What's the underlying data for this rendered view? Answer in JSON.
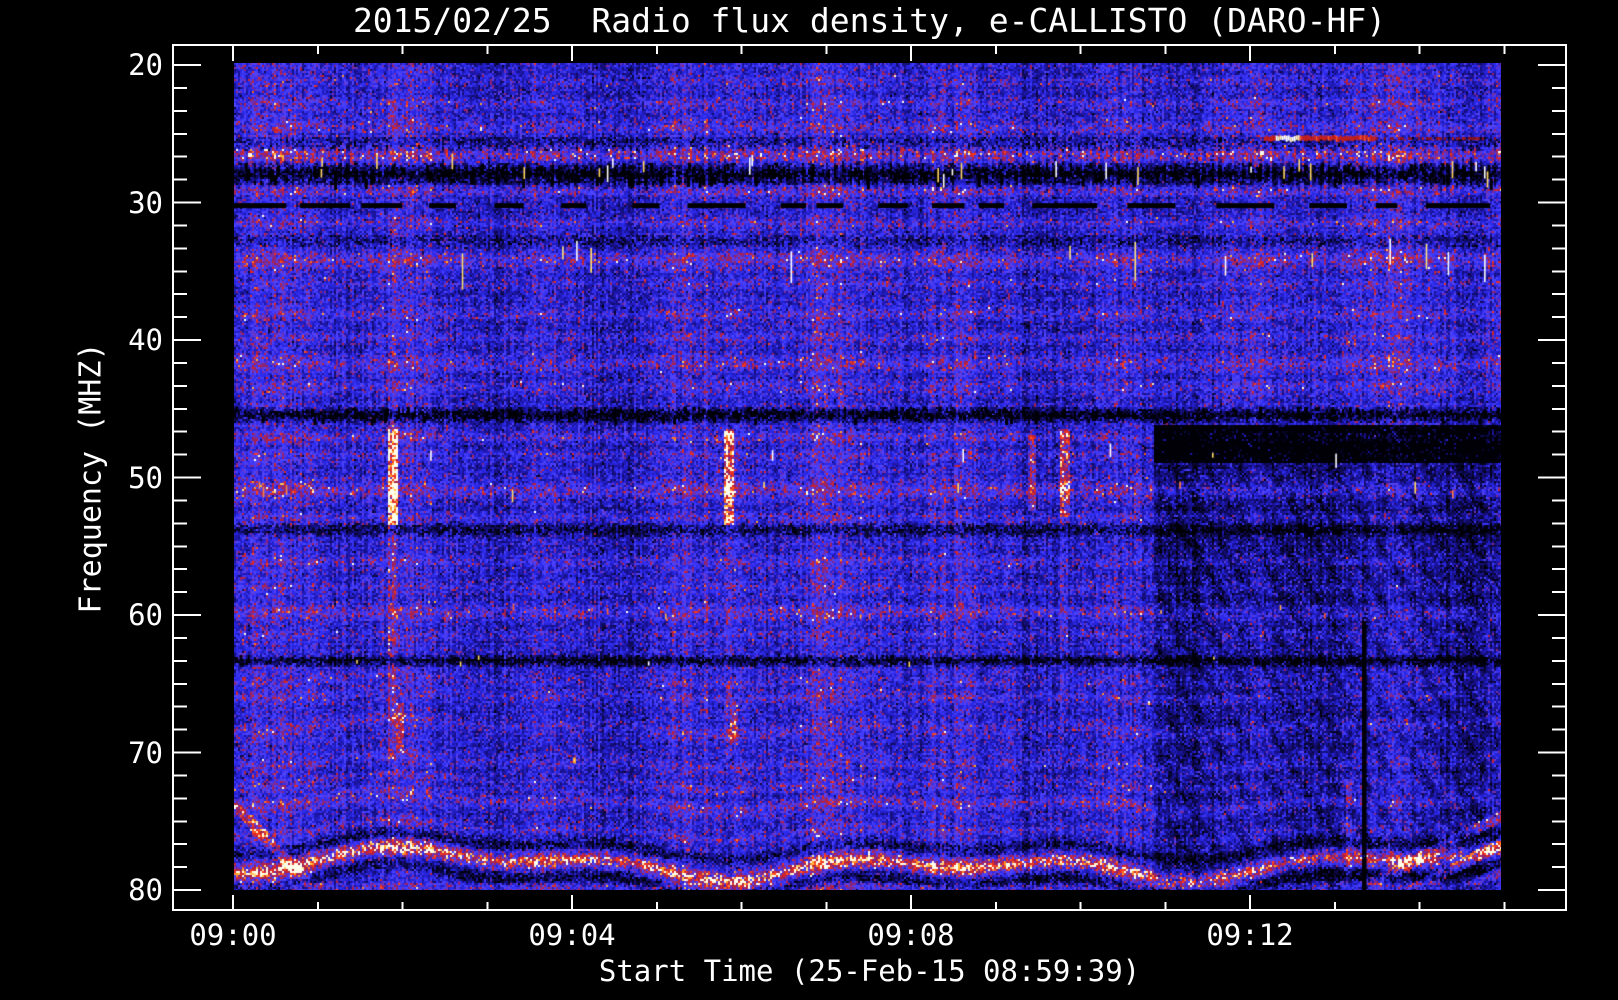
{
  "figure": {
    "title": "2015/02/25  Radio flux density, e-CALLISTO (DARO-HF)"
  },
  "chart_data": {
    "type": "heatmap",
    "title": "2015/02/25  Radio flux density, e-CALLISTO (DARO-HF)",
    "xlabel": "Start Time (25-Feb-15 08:59:39)",
    "ylabel": "Frequency (MHZ)",
    "instrument": "e-CALLISTO (DARO-HF)",
    "date": "2015/02/25",
    "start_time": "08:59:39",
    "x_ticks": [
      {
        "label": "09:00",
        "minutes": 0
      },
      {
        "label": "09:04",
        "minutes": 4
      },
      {
        "label": "09:08",
        "minutes": 8
      },
      {
        "label": "09:12",
        "minutes": 12
      }
    ],
    "x_minor_step_minutes": 1,
    "x_axis_range_minutes": [
      -0.72,
      15.74
    ],
    "data_start_minutes": 0.01,
    "data_end_minutes": 14.95,
    "y_ticks": [
      20,
      30,
      40,
      50,
      60,
      70,
      80
    ],
    "y_minor_divisions": 6,
    "ylim": [
      18.5,
      81.5
    ],
    "data_freq_range": [
      20,
      80
    ],
    "grid": false,
    "legend": false,
    "colors": {
      "background": "#000000",
      "axis": "#ffffff",
      "text": "#ffffff",
      "base_blue": "#2a28e6",
      "mottle_maroon": "#8a2050",
      "band_red": "#cc2428",
      "hot_orange": "#ffb432",
      "line_red": "#ff3c14"
    },
    "palette": [
      [
        0.0,
        [
          0,
          0,
          6
        ]
      ],
      [
        0.15,
        [
          12,
          8,
          70
        ]
      ],
      [
        0.3,
        [
          25,
          18,
          150
        ]
      ],
      [
        0.45,
        [
          42,
          40,
          235
        ]
      ],
      [
        0.58,
        [
          80,
          70,
          255
        ]
      ],
      [
        0.66,
        [
          115,
          45,
          170
        ]
      ],
      [
        0.74,
        [
          155,
          32,
          85
        ]
      ],
      [
        0.82,
        [
          205,
          35,
          45
        ]
      ],
      [
        0.9,
        [
          255,
          60,
          25
        ]
      ],
      [
        0.96,
        [
          255,
          185,
          50
        ]
      ],
      [
        1.0,
        [
          255,
          255,
          235
        ]
      ]
    ],
    "features": {
      "bands": [
        {
          "f": 21.3,
          "w": 0.5,
          "s": 0.07,
          "a": 0
        },
        {
          "f": 23.0,
          "w": 0.6,
          "s": 0.1,
          "a": 0
        },
        {
          "f": 24.6,
          "w": 0.7,
          "s": 0.16,
          "a": 0
        },
        {
          "f": 25.9,
          "w": 0.5,
          "s": -0.12,
          "a": 0
        },
        {
          "f": 26.6,
          "w": 0.9,
          "s": 0.3,
          "a": 0
        },
        {
          "f": 28.1,
          "w": 0.8,
          "s": -0.5,
          "a": 0
        },
        {
          "f": 29.3,
          "w": 0.45,
          "s": 0.2,
          "a": 0
        },
        {
          "f": 31.6,
          "w": 0.5,
          "s": 0.12,
          "a": 0
        },
        {
          "f": 32.9,
          "w": 0.4,
          "s": -0.1,
          "a": 0
        },
        {
          "f": 34.3,
          "w": 0.9,
          "s": 0.22,
          "a": 0
        },
        {
          "f": 36.0,
          "w": 0.5,
          "s": 0.1,
          "a": 0
        },
        {
          "f": 38.2,
          "w": 0.7,
          "s": 0.14,
          "a": 0
        },
        {
          "f": 40.0,
          "w": 0.5,
          "s": 0.1,
          "a": 0
        },
        {
          "f": 41.7,
          "w": 0.8,
          "s": 0.18,
          "a": 0
        },
        {
          "f": 43.4,
          "w": 0.5,
          "s": 0.12,
          "a": 0
        },
        {
          "f": 45.55,
          "w": 0.6,
          "s": -0.45,
          "a": 0
        },
        {
          "f": 47.1,
          "w": 0.6,
          "s": 0.15,
          "a": 0
        },
        {
          "f": 48.4,
          "w": 0.5,
          "s": 0.1,
          "a": 0
        },
        {
          "f": 51.0,
          "w": 1.0,
          "s": 0.22,
          "a": 0
        },
        {
          "f": 53.0,
          "w": 0.5,
          "s": 0.12,
          "a": 0
        },
        {
          "f": 53.9,
          "w": 0.5,
          "s": -0.28,
          "a": 0
        },
        {
          "f": 56.2,
          "w": 0.7,
          "s": 0.12,
          "a": 0
        },
        {
          "f": 58.1,
          "w": 0.5,
          "s": 0.08,
          "a": 0
        },
        {
          "f": 59.8,
          "w": 0.7,
          "s": 0.18,
          "a": 0
        },
        {
          "f": 61.5,
          "w": 0.4,
          "s": 0.08,
          "a": 0
        },
        {
          "f": 63.35,
          "w": 0.4,
          "s": -0.4,
          "a": 0
        },
        {
          "f": 64.8,
          "w": 0.5,
          "s": 0.1,
          "a": 0.2
        },
        {
          "f": 65.9,
          "w": 0.5,
          "s": 0.12,
          "a": 0.3
        },
        {
          "f": 68.2,
          "w": 0.6,
          "s": 0.14,
          "a": 0.4
        },
        {
          "f": 70.8,
          "w": 0.6,
          "s": 0.12,
          "a": 0.4
        },
        {
          "f": 72.2,
          "w": 0.4,
          "s": 0.1,
          "a": 0.45
        },
        {
          "f": 73.7,
          "w": 0.7,
          "s": 0.2,
          "a": 0.5
        },
        {
          "f": 75.7,
          "w": 0.5,
          "s": 0.12,
          "a": 0.55
        },
        {
          "f": 76.9,
          "w": 0.45,
          "s": -0.22,
          "a": 0.8
        },
        {
          "f": 78.15,
          "w": 0.8,
          "s": 0.6,
          "a": 1.0
        },
        {
          "f": 79.4,
          "w": 0.5,
          "s": -0.28,
          "a": 1.0
        },
        {
          "f": 79.9,
          "w": 0.5,
          "s": 0.14,
          "a": 0
        }
      ],
      "regions": [
        {
          "t0": 10.85,
          "t1": 15.1,
          "f0": 46.2,
          "f1": 49.0,
          "s": -0.62
        },
        {
          "t0": 10.85,
          "t1": 15.1,
          "f0": 49.0,
          "f1": 60.0,
          "s": -0.13
        },
        {
          "t0": 10.85,
          "t1": 15.1,
          "f0": 60.0,
          "f1": 80.0,
          "s": -0.07
        }
      ],
      "streaks": [
        {
          "t": 1.87,
          "w": 0.06,
          "f1": 46.5,
          "f2": 53.5,
          "s": 0.5
        },
        {
          "t": 1.87,
          "w": 0.05,
          "f1": 53.5,
          "f2": 70.5,
          "s": 0.16
        },
        {
          "t": 1.95,
          "w": 0.05,
          "f1": 66.5,
          "f2": 70.0,
          "s": 0.28
        },
        {
          "t": 1.87,
          "w": 0.04,
          "f1": 20.0,
          "f2": 46.5,
          "s": 0.07
        },
        {
          "t": 5.83,
          "w": 0.06,
          "f1": 46.5,
          "f2": 53.5,
          "s": 0.5
        },
        {
          "t": 5.83,
          "w": 0.05,
          "f1": 53.5,
          "f2": 70.5,
          "s": 0.15
        },
        {
          "t": 5.9,
          "w": 0.05,
          "f1": 66.5,
          "f2": 69.5,
          "s": 0.25
        },
        {
          "t": 5.83,
          "w": 0.04,
          "f1": 20.0,
          "f2": 46.5,
          "s": 0.07
        },
        {
          "t": 9.42,
          "w": 0.05,
          "f1": 47.0,
          "f2": 52.5,
          "s": 0.3
        },
        {
          "t": 9.8,
          "w": 0.06,
          "f1": 46.5,
          "f2": 53.0,
          "s": 0.42
        },
        {
          "t": 9.8,
          "w": 0.05,
          "f1": 53.0,
          "f2": 68.0,
          "s": 0.13
        },
        {
          "t": 13.15,
          "w": 0.04,
          "f1": 72.0,
          "f2": 79.0,
          "s": 0.25
        },
        {
          "t": 13.34,
          "w": 0.026,
          "f1": 60.5,
          "f2": 80.0,
          "s": -0.9
        }
      ],
      "diagonals": [
        {
          "t0": 0.0,
          "t1": 0.9,
          "f0": 73.8,
          "slope": 6.5,
          "spacing": 0,
          "count": 1,
          "w": 0.55,
          "s": 0.3,
          "fmin": 71.0,
          "fmax": 79.8
        },
        {
          "t0": 12.65,
          "t1": 15.05,
          "f0": 86.0,
          "slope": -3.2,
          "spacing": 2.0,
          "count": 3,
          "w": 0.45,
          "s": 0.3,
          "fmin": 71.5,
          "fmax": 79.7
        }
      ],
      "white_tick_groups": [
        {
          "f": 27.8,
          "jitter": 0.8,
          "n": 26,
          "h": 12,
          "colors": [
            "#ffffff",
            "#ffd860"
          ]
        },
        {
          "f": 34.3,
          "jitter": 0.7,
          "n": 13,
          "h": 26,
          "colors": [
            "#ffffff",
            "#ffe070"
          ]
        },
        {
          "f": 48.2,
          "jitter": 0.6,
          "n": 6,
          "h": 10,
          "colors": [
            "#ffe070",
            "#ffffff"
          ]
        },
        {
          "f": 50.9,
          "jitter": 0.5,
          "n": 9,
          "h": 9,
          "colors": [
            "#ffd860",
            "#ff8040"
          ]
        },
        {
          "f": 59.8,
          "jitter": 0.4,
          "n": 14,
          "h": 5,
          "colors": [
            "#ffb040",
            "#ff6030"
          ]
        },
        {
          "f": 63.3,
          "jitter": 0.3,
          "n": 6,
          "h": 4,
          "colors": [
            "#ffffff",
            "#ffd860"
          ]
        }
      ],
      "dark_dash_groups": [
        {
          "f": 28.1,
          "jitter": 0.6,
          "n": 150,
          "h": 8,
          "w": 3,
          "color": "#000000"
        },
        {
          "f": 45.55,
          "jitter": 0.45,
          "n": 170,
          "h": 5,
          "w": 3,
          "color": "#000004"
        },
        {
          "f": 53.9,
          "jitter": 0.4,
          "n": 90,
          "h": 4,
          "w": 3,
          "color": "#0a0a30"
        },
        {
          "f": 63.35,
          "jitter": 0.3,
          "n": 130,
          "h": 3,
          "w": 3,
          "color": "#020210"
        }
      ],
      "dashed_black_line": {
        "f": 30.35,
        "seg_min": 18,
        "seg_max": 66,
        "gap_min": 10,
        "gap_max": 46,
        "thickness": 5
      },
      "hot_streak": {
        "f": 25.45,
        "t0": 12.15,
        "t1": 13.45,
        "hot0": 12.28,
        "hot1": 12.56,
        "tail_t1": 14.9
      },
      "orange_dot": {
        "t": 4.0,
        "f": 70.6
      },
      "dark_vertical_line": {
        "t": 13.34,
        "f0": 60.8,
        "f1": 80.0
      }
    }
  }
}
